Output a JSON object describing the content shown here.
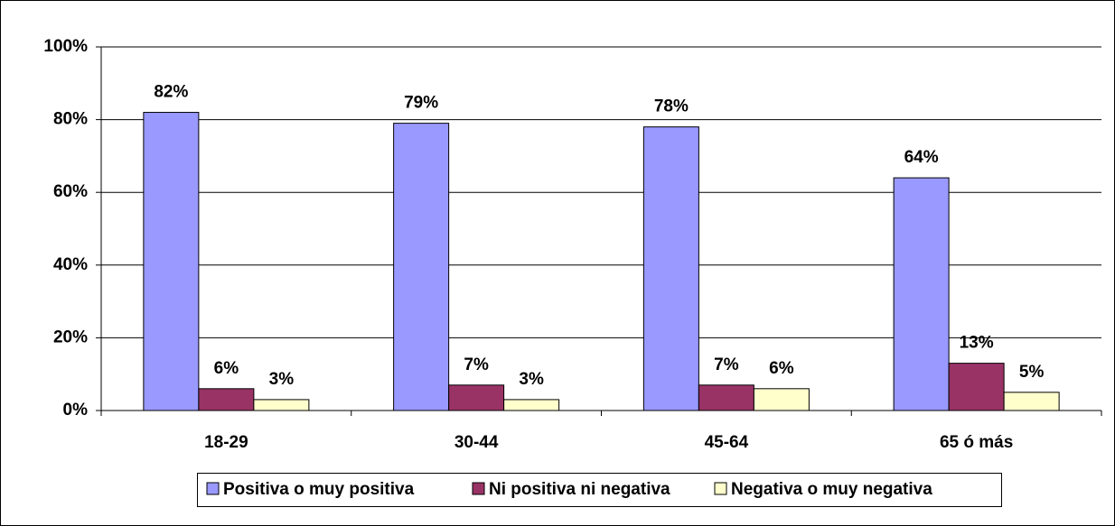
{
  "chart_data": {
    "type": "bar",
    "categories": [
      "18-29",
      "30-44",
      "45-64",
      "65 ó más"
    ],
    "series": [
      {
        "name": "Positiva o muy positiva",
        "color": "#9999ff",
        "values": [
          82,
          79,
          78,
          64
        ],
        "value_labels": [
          "82%",
          "79%",
          "78%",
          "64%"
        ]
      },
      {
        "name": "Ni positiva ni negativa",
        "color": "#993366",
        "values": [
          6,
          7,
          7,
          13
        ],
        "value_labels": [
          "6%",
          "7%",
          "7%",
          "13%"
        ]
      },
      {
        "name": "Negativa o muy negativa",
        "color": "#ffffcc",
        "values": [
          3,
          3,
          6,
          5
        ],
        "value_labels": [
          "3%",
          "3%",
          "6%",
          "5%"
        ]
      }
    ],
    "ylim": [
      0,
      100
    ],
    "yticks": [
      {
        "value": 0,
        "label": "0%"
      },
      {
        "value": 20,
        "label": "20%"
      },
      {
        "value": 40,
        "label": "40%"
      },
      {
        "value": 60,
        "label": "60%"
      },
      {
        "value": 80,
        "label": "80%"
      },
      {
        "value": 100,
        "label": "100%"
      }
    ],
    "grid": true,
    "legend": "bottom"
  }
}
